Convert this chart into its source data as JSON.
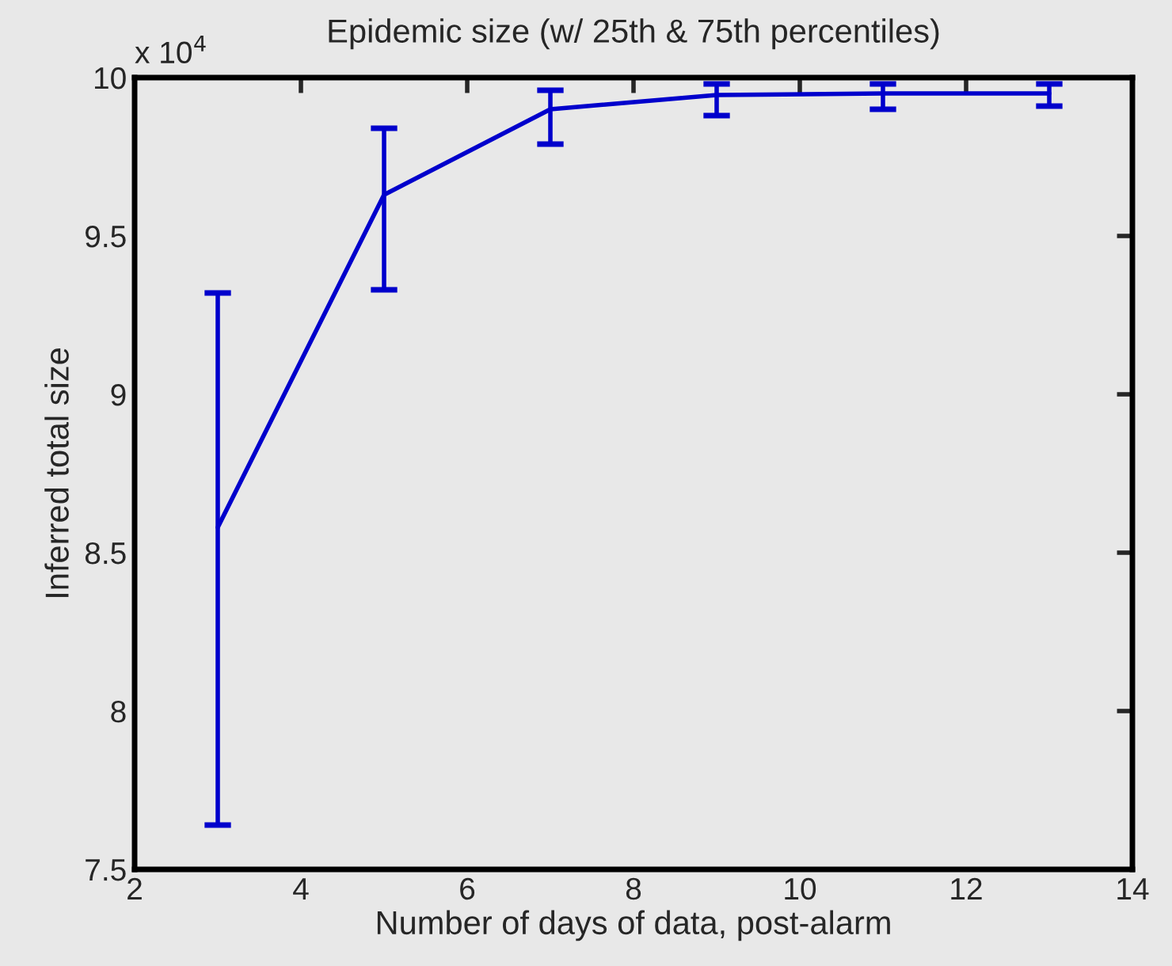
{
  "chart_data": {
    "type": "line",
    "title": "Epidemic size (w/ 25th & 75th percentiles)",
    "xlabel": "Number of days of data, post-alarm",
    "ylabel": "Inferred total size",
    "annotations": [
      "x 10$^{4}$"
    ],
    "x": [
      3,
      5,
      7,
      9,
      11,
      13
    ],
    "series": [
      {
        "color": "#0000cc",
        "values": [
          8.58,
          9.63,
          9.9,
          9.945,
          9.95,
          9.95
        ],
        "errors": [
          [
            7.64,
            9.32
          ],
          [
            9.33,
            9.84
          ],
          [
            9.79,
            9.96
          ],
          [
            9.88,
            9.98
          ],
          [
            9.9,
            9.98
          ],
          [
            9.91,
            9.98
          ]
        ]
      }
    ],
    "xlim": [
      2,
      14
    ],
    "xticks": [
      2,
      4,
      6,
      8,
      10,
      12,
      14
    ],
    "ylim": [
      7.5,
      10
    ],
    "yticks": [
      7.5,
      8,
      8.5,
      9,
      9.5,
      10
    ],
    "grid": false,
    "marker": "none",
    "line_style": "solid"
  }
}
